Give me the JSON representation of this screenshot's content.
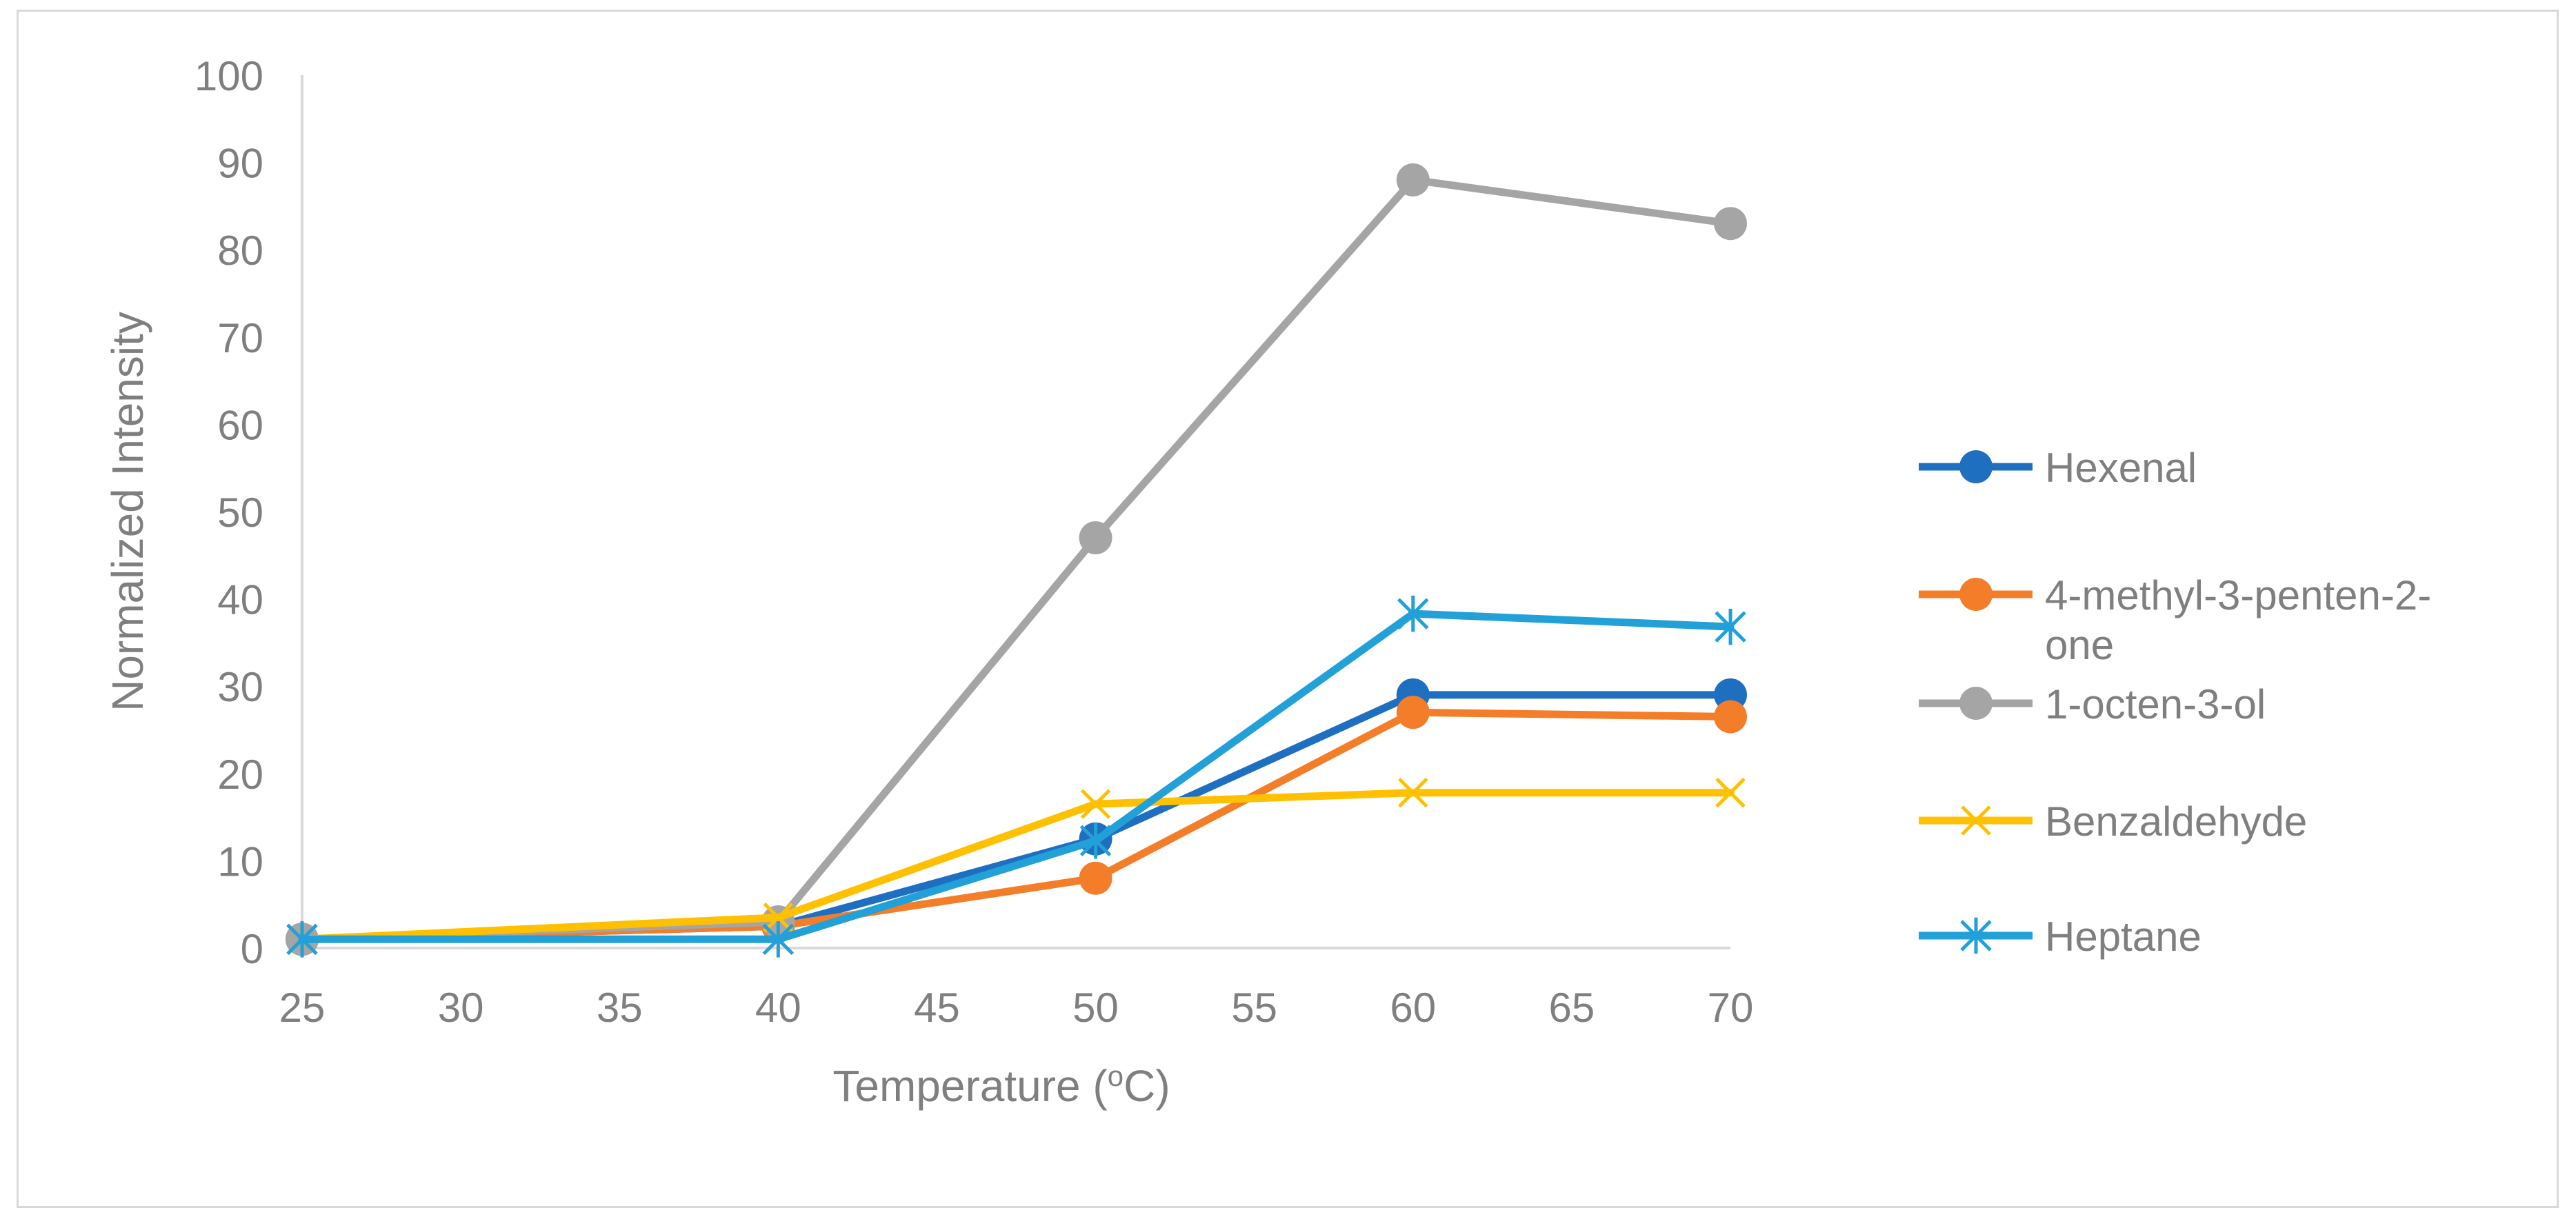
{
  "chart_data": {
    "type": "line",
    "title": "",
    "xlabel": "Temperature (",
    "xlabel_sup": "o",
    "xlabel_unit": "C)",
    "ylabel": "Normalized Intensity",
    "xlim": [
      25,
      70
    ],
    "ylim": [
      0,
      100
    ],
    "xticks": [
      25,
      30,
      35,
      40,
      45,
      50,
      55,
      60,
      65,
      70
    ],
    "yticks": [
      0,
      10,
      20,
      30,
      40,
      50,
      60,
      70,
      80,
      90,
      100
    ],
    "x": [
      25,
      40,
      50,
      60,
      70
    ],
    "grid": false,
    "legend_position": "right",
    "series": [
      {
        "name": "Hexenal",
        "legend_lines": [
          "Hexenal"
        ],
        "color": "#1f6fc1",
        "marker": "circle",
        "values": [
          1,
          2.5,
          12.5,
          29,
          29
        ]
      },
      {
        "name": "4-methyl-3-penten-2-one",
        "legend_lines": [
          "4-methyl-3-penten-2-",
          "one"
        ],
        "color": "#f47d2a",
        "marker": "circle",
        "values": [
          1,
          2.5,
          8,
          27,
          26.5
        ]
      },
      {
        "name": "1-octen-3-ol",
        "legend_lines": [
          "1-octen-3-ol"
        ],
        "color": "#a5a5a5",
        "marker": "circle",
        "values": [
          1,
          3,
          47,
          88,
          83
        ]
      },
      {
        "name": "Benzaldehyde",
        "legend_lines": [
          "Benzaldehyde"
        ],
        "color": "#ffc000",
        "marker": "x",
        "values": [
          1,
          3.5,
          16.5,
          17.8,
          17.8
        ]
      },
      {
        "name": "Heptane",
        "legend_lines": [
          "Heptane"
        ],
        "color": "#22a0d8",
        "marker": "asterisk",
        "values": [
          1,
          1,
          12.3,
          38.3,
          36.8
        ]
      }
    ]
  }
}
